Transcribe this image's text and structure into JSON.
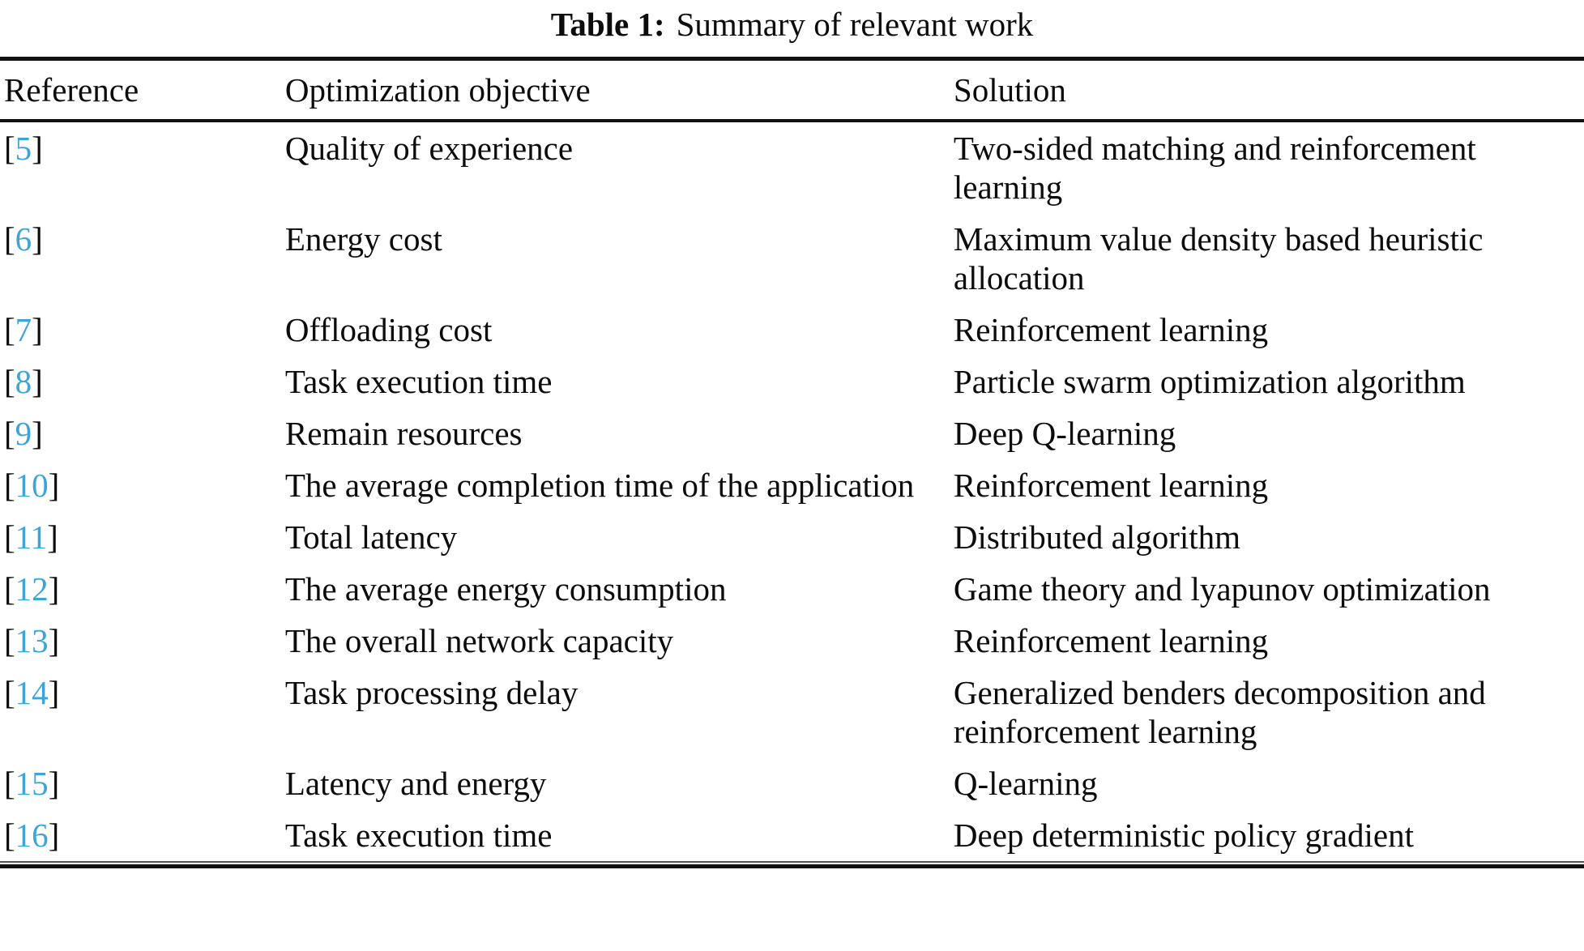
{
  "caption": {
    "label": "Table 1:",
    "title": "Summary of relevant work"
  },
  "table": {
    "headers": {
      "reference": "Reference",
      "objective": "Optimization objective",
      "solution": "Solution"
    },
    "brackets": {
      "open": "[",
      "close": "]"
    },
    "rows": [
      {
        "ref": "5",
        "objective": "Quality of experience",
        "solution": "Two-sided matching and reinforcement learning"
      },
      {
        "ref": "6",
        "objective": "Energy cost",
        "solution": "Maximum value density based heuristic allocation"
      },
      {
        "ref": "7",
        "objective": "Offloading cost",
        "solution": "Reinforcement learning"
      },
      {
        "ref": "8",
        "objective": "Task execution time",
        "solution": "Particle swarm optimization algorithm"
      },
      {
        "ref": "9",
        "objective": "Remain resources",
        "solution": "Deep Q-learning"
      },
      {
        "ref": "10",
        "objective": "The average completion time of the application",
        "solution": "Reinforcement learning"
      },
      {
        "ref": "11",
        "objective": "Total latency",
        "solution": "Distributed algorithm"
      },
      {
        "ref": "12",
        "objective": "The average energy consumption",
        "solution": "Game theory and lyapunov optimization"
      },
      {
        "ref": "13",
        "objective": "The overall network capacity",
        "solution": "Reinforcement learning"
      },
      {
        "ref": "14",
        "objective": "Task processing delay",
        "solution": "Generalized benders decomposition and reinforcement learning"
      },
      {
        "ref": "15",
        "objective": "Latency and energy",
        "solution": "Q-learning"
      },
      {
        "ref": "16",
        "objective": "Task execution time",
        "solution": "Deep deterministic policy gradient"
      }
    ]
  },
  "colors": {
    "citation": "#3ba4da",
    "text": "#0c0c0c",
    "rule": "#111111"
  }
}
